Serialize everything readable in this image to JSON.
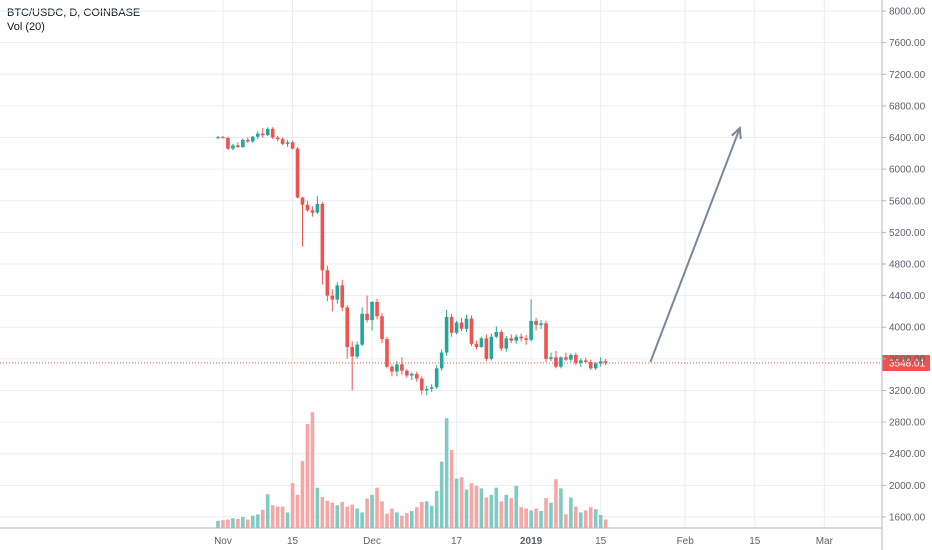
{
  "header": {
    "symbol": "BTC/USDC, D, COINBASE",
    "volume_label": "Vol (20)"
  },
  "colors": {
    "up": "#26a69a",
    "down": "#ef5350",
    "up_volume": "#7fcac3",
    "down_volume": "#f5a6a5",
    "grid": "#e9edf2",
    "axis_text": "#5d606b",
    "last_price_line": "#ef5350",
    "arrow": "#7b869c"
  },
  "chart_data": {
    "type": "candlestick",
    "title": "BTC/USDC, D, COINBASE",
    "ylim": [
      1460,
      8140
    ],
    "y_ticks": [
      "1600.00",
      "2000.00",
      "2400.00",
      "2800.00",
      "3200.00",
      "3600.00",
      "4000.00",
      "4400.00",
      "4800.00",
      "5200.00",
      "5600.00",
      "6000.00",
      "6400.00",
      "6800.00",
      "7200.00",
      "7600.00",
      "8000.00"
    ],
    "x_tick_labels": [
      {
        "label": "Nov",
        "index": 1
      },
      {
        "label": "15",
        "index": 15
      },
      {
        "label": "Dec",
        "index": 31
      },
      {
        "label": "17",
        "index": 48
      },
      {
        "label": "2019",
        "index": 63
      },
      {
        "label": "15",
        "index": 77
      },
      {
        "label": "Feb",
        "index": 94
      },
      {
        "label": "15",
        "index": 108
      },
      {
        "label": "Mar",
        "index": 122
      }
    ],
    "x_tick_bold": [
      "2019"
    ],
    "last_price": "3548.01",
    "last_price_value": 3548.01,
    "projection_arrow": {
      "from": {
        "index": 87,
        "price": 3560
      },
      "to": {
        "index": 105,
        "price": 6520
      }
    },
    "volume_panel": {
      "label": "Vol (20)",
      "max_volume": 1000
    },
    "candles": [
      [
        6400,
        6420,
        6380,
        6405
      ],
      [
        6405,
        6420,
        6390,
        6395
      ],
      [
        6395,
        6410,
        6240,
        6260
      ],
      [
        6260,
        6320,
        6240,
        6300
      ],
      [
        6300,
        6340,
        6270,
        6280
      ],
      [
        6280,
        6390,
        6270,
        6370
      ],
      [
        6370,
        6400,
        6330,
        6350
      ],
      [
        6350,
        6420,
        6330,
        6410
      ],
      [
        6410,
        6480,
        6380,
        6450
      ],
      [
        6450,
        6520,
        6400,
        6430
      ],
      [
        6430,
        6530,
        6420,
        6510
      ],
      [
        6510,
        6530,
        6380,
        6400
      ],
      [
        6400,
        6420,
        6350,
        6380
      ],
      [
        6380,
        6400,
        6300,
        6320
      ],
      [
        6320,
        6370,
        6280,
        6340
      ],
      [
        6340,
        6360,
        6250,
        6260
      ],
      [
        6260,
        6280,
        5630,
        5640
      ],
      [
        5640,
        5650,
        5020,
        5550
      ],
      [
        5550,
        5600,
        5460,
        5480
      ],
      [
        5480,
        5530,
        5400,
        5450
      ],
      [
        5450,
        5660,
        5430,
        5560
      ],
      [
        5560,
        5580,
        4540,
        4720
      ],
      [
        4720,
        4780,
        4330,
        4400
      ],
      [
        4400,
        4480,
        4200,
        4350
      ],
      [
        4350,
        4570,
        4300,
        4530
      ],
      [
        4530,
        4600,
        4200,
        4250
      ],
      [
        4250,
        4280,
        3600,
        3750
      ],
      [
        3750,
        3820,
        3200,
        3630
      ],
      [
        3630,
        3820,
        3600,
        3780
      ],
      [
        3780,
        4250,
        3760,
        4170
      ],
      [
        4170,
        4400,
        4060,
        4090
      ],
      [
        4090,
        4330,
        3960,
        4320
      ],
      [
        4320,
        4360,
        4100,
        4140
      ],
      [
        4140,
        4180,
        3800,
        3850
      ],
      [
        3850,
        3880,
        3480,
        3500
      ],
      [
        3500,
        3530,
        3380,
        3440
      ],
      [
        3440,
        3570,
        3380,
        3530
      ],
      [
        3530,
        3620,
        3400,
        3450
      ],
      [
        3450,
        3470,
        3360,
        3390
      ],
      [
        3390,
        3430,
        3330,
        3410
      ],
      [
        3410,
        3440,
        3310,
        3350
      ],
      [
        3350,
        3380,
        3150,
        3200
      ],
      [
        3200,
        3260,
        3140,
        3220
      ],
      [
        3220,
        3280,
        3180,
        3240
      ],
      [
        3240,
        3520,
        3220,
        3480
      ],
      [
        3480,
        3720,
        3450,
        3680
      ],
      [
        3680,
        4220,
        3640,
        4130
      ],
      [
        4130,
        4170,
        3880,
        3930
      ],
      [
        3930,
        4080,
        3910,
        4060
      ],
      [
        4060,
        4120,
        3950,
        3980
      ],
      [
        3980,
        4160,
        3940,
        4110
      ],
      [
        4110,
        4150,
        3760,
        3790
      ],
      [
        3790,
        3830,
        3720,
        3750
      ],
      [
        3750,
        3880,
        3740,
        3860
      ],
      [
        3860,
        3910,
        3570,
        3600
      ],
      [
        3600,
        3920,
        3580,
        3880
      ],
      [
        3880,
        4010,
        3860,
        3940
      ],
      [
        3940,
        3970,
        3700,
        3730
      ],
      [
        3730,
        3890,
        3690,
        3860
      ],
      [
        3860,
        3910,
        3800,
        3830
      ],
      [
        3830,
        3910,
        3790,
        3880
      ],
      [
        3880,
        3920,
        3820,
        3860
      ],
      [
        3860,
        3900,
        3780,
        3840
      ],
      [
        3840,
        4350,
        3820,
        4080
      ],
      [
        4080,
        4120,
        3960,
        4030
      ],
      [
        4030,
        4090,
        3980,
        4050
      ],
      [
        4050,
        4080,
        3560,
        3600
      ],
      [
        3600,
        3680,
        3570,
        3620
      ],
      [
        3620,
        3700,
        3480,
        3500
      ],
      [
        3500,
        3630,
        3480,
        3620
      ],
      [
        3620,
        3680,
        3570,
        3590
      ],
      [
        3590,
        3670,
        3560,
        3650
      ],
      [
        3650,
        3680,
        3520,
        3550
      ],
      [
        3550,
        3610,
        3500,
        3580
      ],
      [
        3580,
        3610,
        3540,
        3560
      ],
      [
        3560,
        3590,
        3460,
        3480
      ],
      [
        3480,
        3560,
        3460,
        3540
      ],
      [
        3540,
        3620,
        3500,
        3570
      ],
      [
        3570,
        3600,
        3520,
        3548.01
      ]
    ],
    "volume": [
      55,
      60,
      65,
      75,
      70,
      85,
      65,
      95,
      105,
      140,
      260,
      175,
      165,
      165,
      120,
      345,
      255,
      515,
      800,
      890,
      310,
      240,
      210,
      195,
      175,
      200,
      165,
      180,
      150,
      120,
      225,
      255,
      310,
      205,
      110,
      150,
      120,
      95,
      115,
      130,
      160,
      200,
      205,
      170,
      285,
      510,
      845,
      600,
      380,
      390,
      295,
      345,
      325,
      305,
      235,
      255,
      310,
      205,
      255,
      230,
      325,
      160,
      150,
      135,
      150,
      130,
      230,
      195,
      375,
      305,
      105,
      235,
      165,
      120,
      135,
      160,
      145,
      100,
      65
    ]
  }
}
